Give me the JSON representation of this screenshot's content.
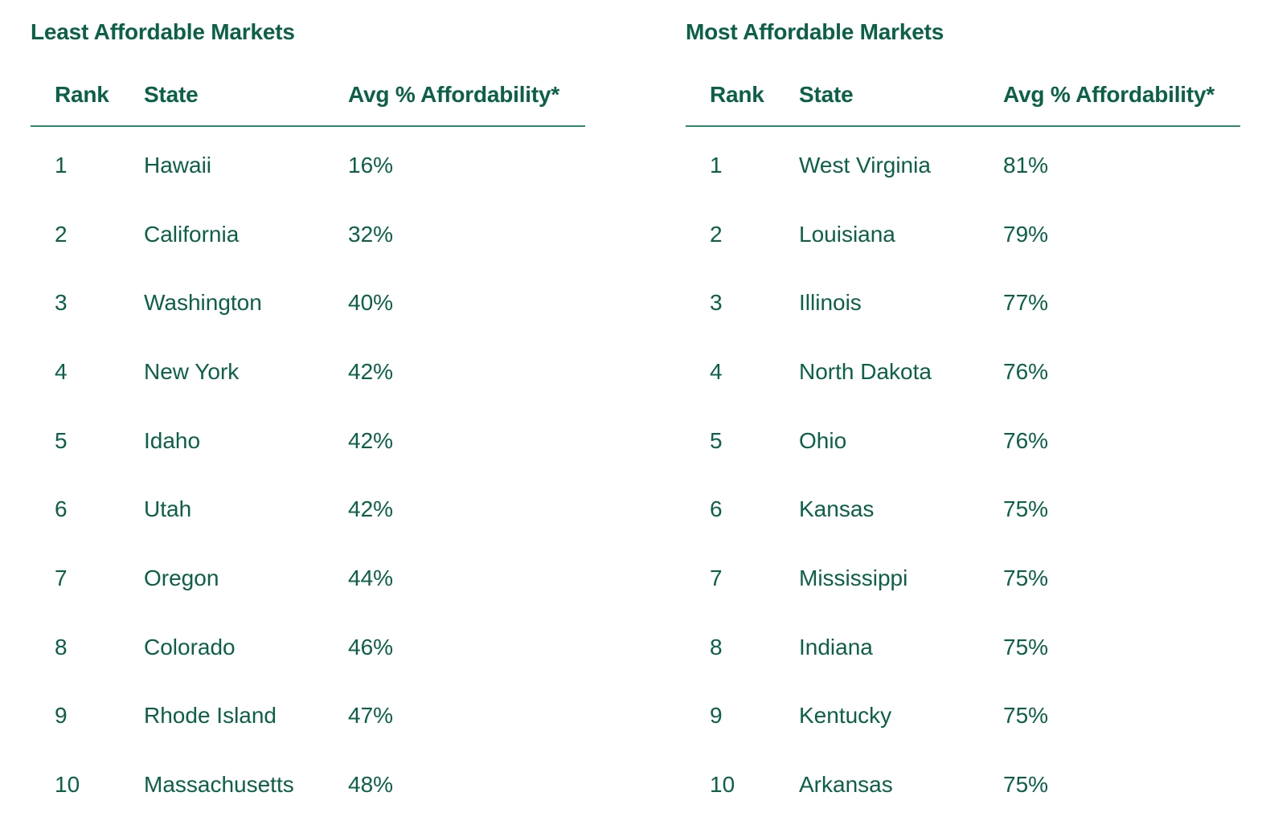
{
  "tables": [
    {
      "title": "Least Affordable Markets",
      "headers": {
        "rank": "Rank",
        "state": "State",
        "avg": "Avg % Affordability*"
      },
      "rows": [
        {
          "rank": "1",
          "state": "Hawaii",
          "avg": "16%"
        },
        {
          "rank": "2",
          "state": "California",
          "avg": "32%"
        },
        {
          "rank": "3",
          "state": "Washington",
          "avg": "40%"
        },
        {
          "rank": "4",
          "state": "New York",
          "avg": "42%"
        },
        {
          "rank": "5",
          "state": "Idaho",
          "avg": "42%"
        },
        {
          "rank": "6",
          "state": "Utah",
          "avg": "42%"
        },
        {
          "rank": "7",
          "state": "Oregon",
          "avg": "44%"
        },
        {
          "rank": "8",
          "state": "Colorado",
          "avg": "46%"
        },
        {
          "rank": "9",
          "state": "Rhode Island",
          "avg": "47%"
        },
        {
          "rank": "10",
          "state": "Massachusetts",
          "avg": "48%"
        }
      ]
    },
    {
      "title": "Most Affordable Markets",
      "headers": {
        "rank": "Rank",
        "state": "State",
        "avg": "Avg % Affordability*"
      },
      "rows": [
        {
          "rank": "1",
          "state": "West Virginia",
          "avg": "81%"
        },
        {
          "rank": "2",
          "state": "Louisiana",
          "avg": "79%"
        },
        {
          "rank": "3",
          "state": "Illinois",
          "avg": "77%"
        },
        {
          "rank": "4",
          "state": "North Dakota",
          "avg": "76%"
        },
        {
          "rank": "5",
          "state": "Ohio",
          "avg": "76%"
        },
        {
          "rank": "6",
          "state": "Kansas",
          "avg": "75%"
        },
        {
          "rank": "7",
          "state": "Mississippi",
          "avg": "75%"
        },
        {
          "rank": "8",
          "state": "Indiana",
          "avg": "75%"
        },
        {
          "rank": "9",
          "state": "Kentucky",
          "avg": "75%"
        },
        {
          "rank": "10",
          "state": "Arkansas",
          "avg": "75%"
        }
      ]
    }
  ],
  "colors": {
    "text": "#0b6148",
    "rule": "#2e8a6c",
    "background": "#ffffff"
  }
}
